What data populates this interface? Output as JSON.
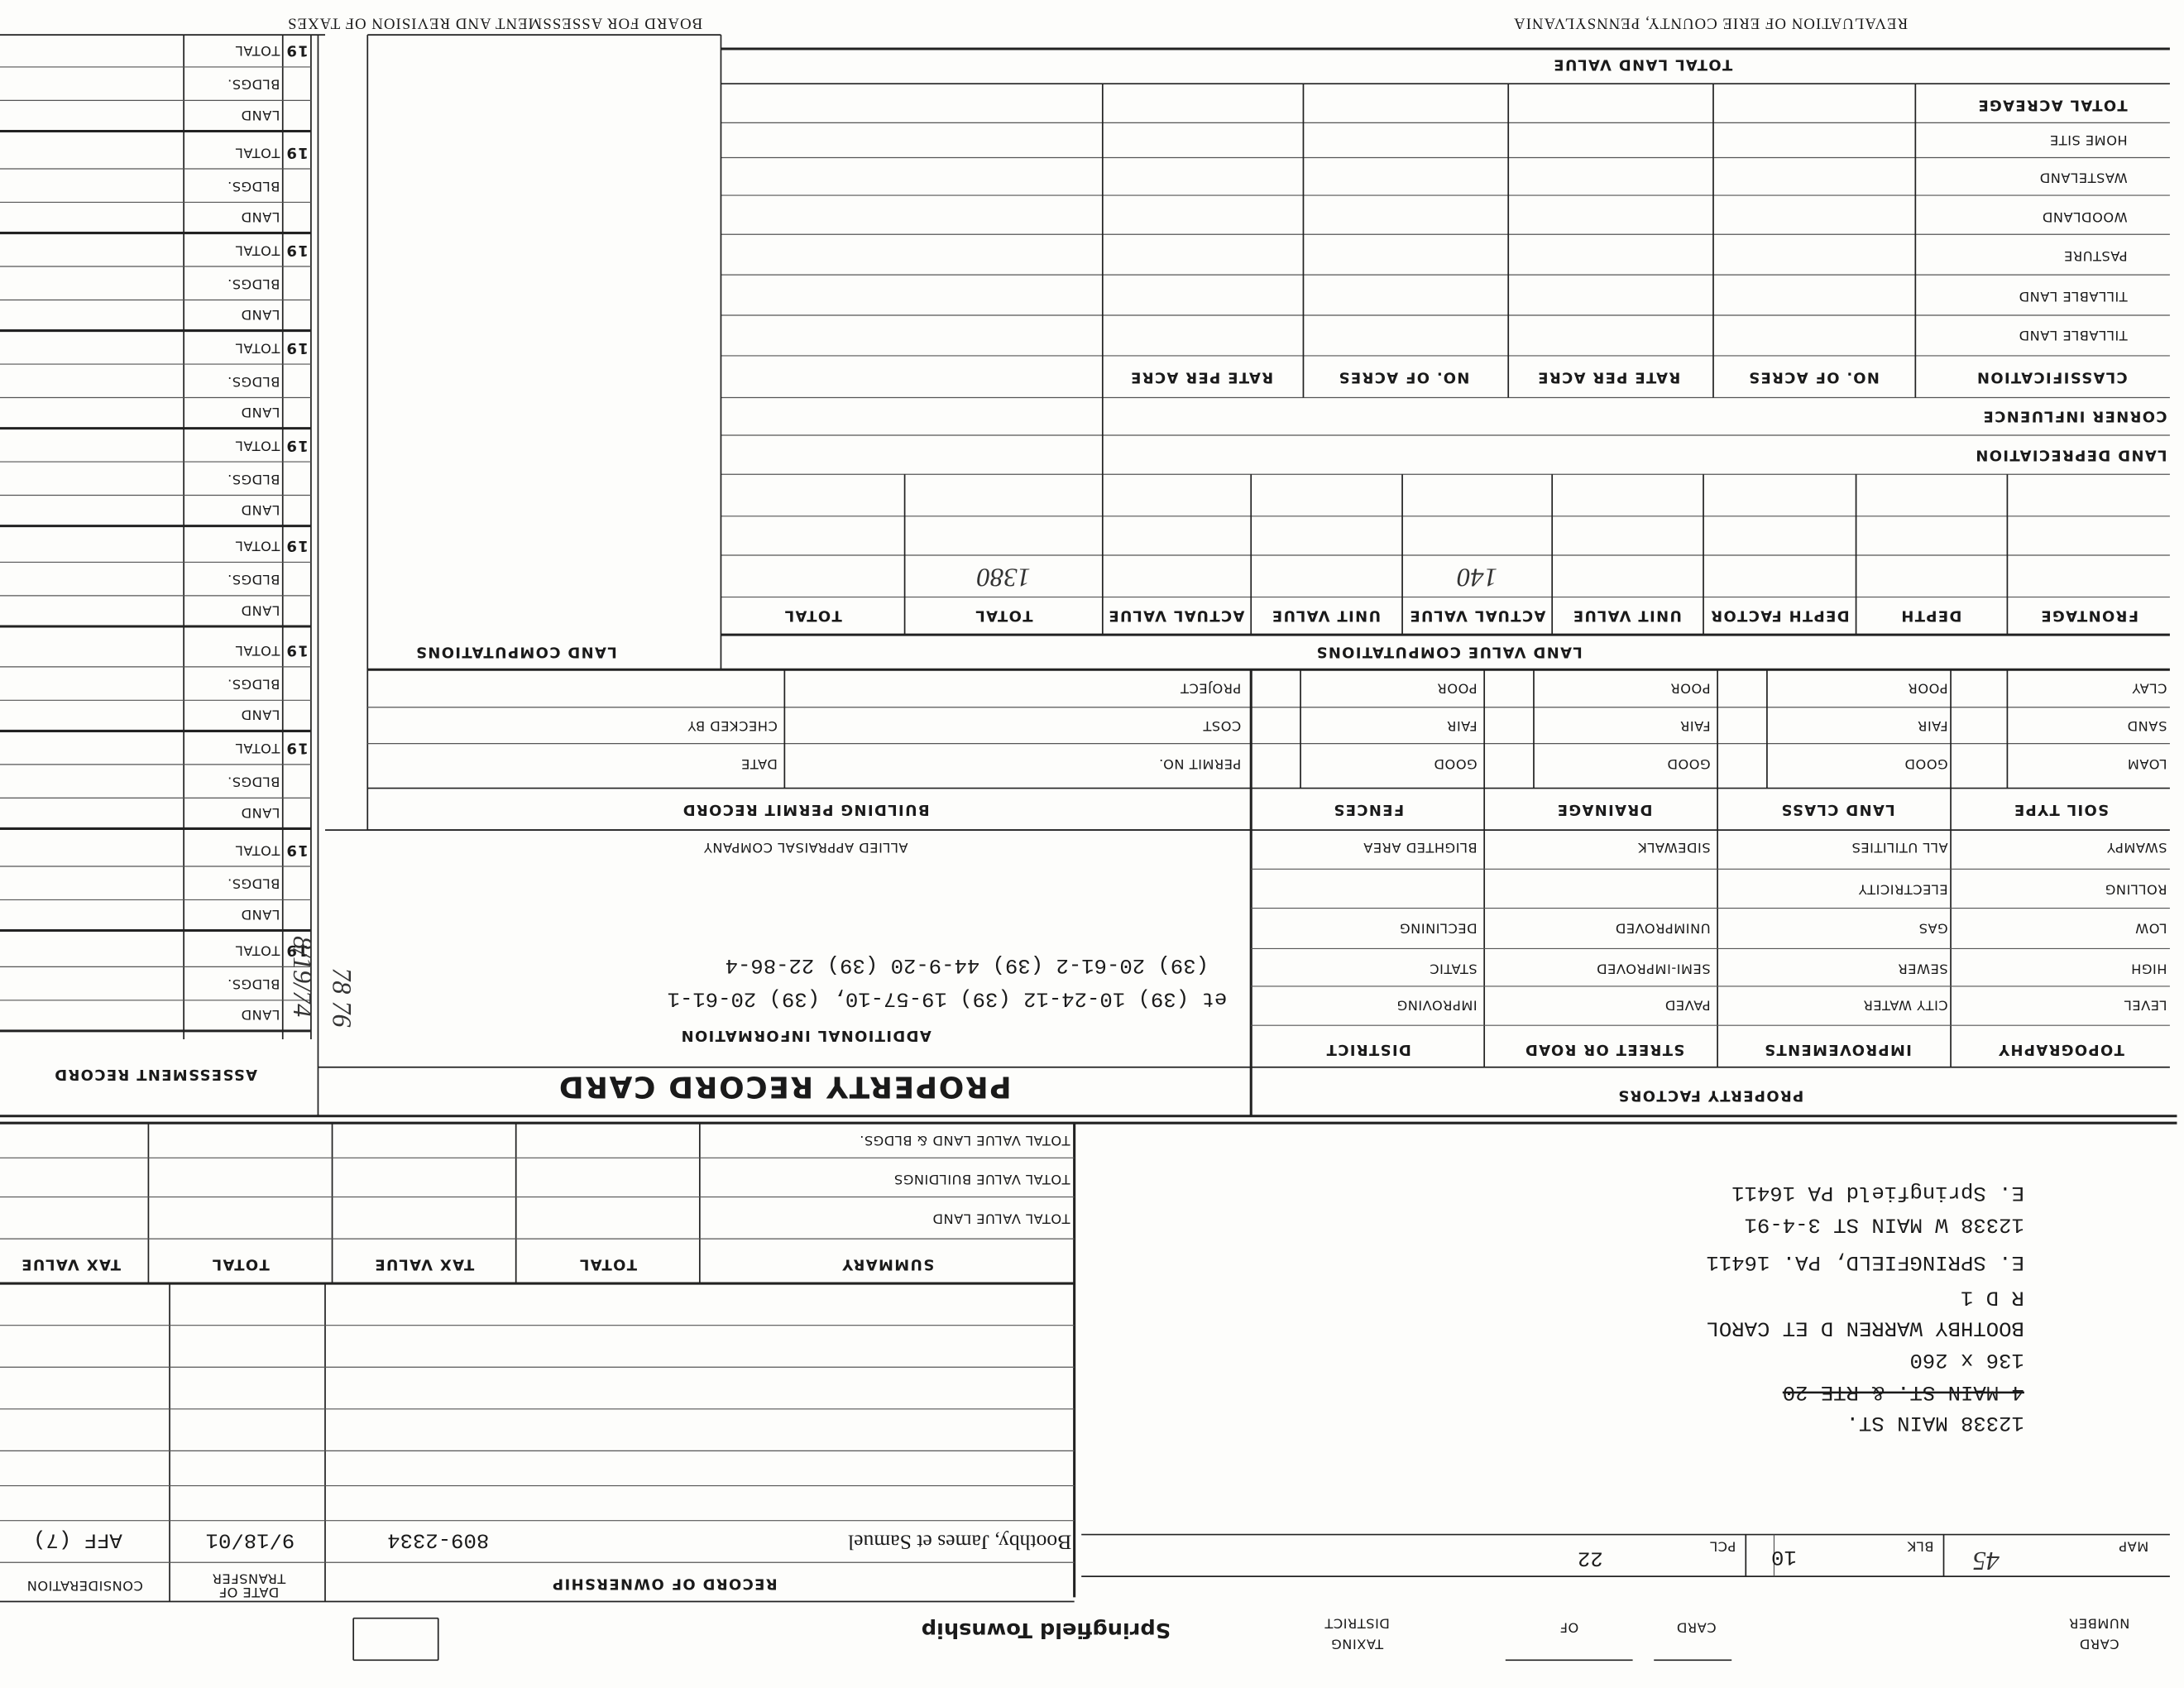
{
  "header": {
    "left": "BOARD FOR ASSESSMENT AND REVISION OF TAXES",
    "right": "REVALUATION OF ERIE COUNTY, PENNSYLVANIA"
  },
  "card_header": {
    "card_number": [
      "CARD",
      "NUMBER"
    ],
    "card_of": [
      "CARD",
      "OF"
    ],
    "taxing_district": [
      "TAXING",
      "DISTRICT"
    ],
    "township": "Springfield Township"
  },
  "parcel": {
    "map_label": "MAP",
    "map": "45",
    "blk_label": "BLK",
    "blk": "10",
    "pcl_label": "PCL",
    "pcl": "22"
  },
  "address_lines": [
    "12338 MAIN ST.",
    "4 MAIN ST. & RTE 20",
    "136 x 260",
    "BOOTHBY WARREN D ET CAROL",
    "R D 1",
    "E. SPRINGFIELD, PA. 16411",
    "12338 W MAIN ST 3-4-91",
    "E. Springfield PA 16411"
  ],
  "ownership": {
    "title": "RECORD OF OWNERSHIP",
    "date_header": [
      "DATE OF",
      "TRANSFER"
    ],
    "consideration_header": "CONSIDERATION",
    "rows": [
      [
        "Boothby, James et Samuel",
        "809-2334",
        "9/18/01",
        "AFF (7)"
      ]
    ]
  },
  "summary": {
    "headers": [
      "SUMMARY",
      "TOTAL",
      "TAX VALUE",
      "TOTAL",
      "TAX VALUE"
    ],
    "rows": [
      "TOTAL VALUE LAND",
      "TOTAL VALUE BUILDINGS",
      "TOTAL VALUE LAND & BLDGS."
    ]
  },
  "property_record_card": {
    "title": "PROPERTY RECORD CARD",
    "additional_information_title": "ADDITIONAL INFORMATION",
    "additional_information": [
      "et (39) 10-24-12 (39) 19-57-10, (39) 20-61-1",
      "(39) 20-61-2 (39) 44-9-20 (39) 22-86-4"
    ],
    "appraiser": "ALLIED APPRAISAL COMPANY"
  },
  "building_permit": {
    "title": "BUILDING PERMIT RECORD",
    "labels": [
      "PERMIT NO.",
      "COST",
      "PROJECT"
    ],
    "right_labels": [
      "DATE",
      "CHECKED BY"
    ]
  },
  "property_factors": {
    "title": "PROPERTY FACTORS",
    "columns": [
      {
        "header": "TOPOGRAPHY",
        "items": [
          "LEVEL",
          "HIGH",
          "LOW",
          "ROLLING",
          "SWAMPY"
        ]
      },
      {
        "header": "IMPROVEMENTS",
        "items": [
          "CITY WATER",
          "SEWER",
          "GAS",
          "ELECTRICITY",
          "ALL UTILITIES"
        ]
      },
      {
        "header": "STREET OR ROAD",
        "items": [
          "PAVED",
          "SEMI-IMPROVED",
          "UNIMPROVED",
          "SIDEWALK"
        ]
      },
      {
        "header": "DISTRICT",
        "items": [
          "IMPROVING",
          "STATIC",
          "DECLINING",
          "BLIGHTED AREA"
        ]
      }
    ]
  },
  "soil": {
    "columns": [
      {
        "header": "SOIL TYPE",
        "items": [
          "LOAM",
          "SAND",
          "CLAY"
        ]
      },
      {
        "header": "LAND CLASS",
        "items": [
          "GOOD",
          "FAIR",
          "POOR"
        ]
      },
      {
        "header": "DRAINAGE",
        "items": [
          "GOOD",
          "FAIR",
          "POOR"
        ]
      },
      {
        "header": "FENCES",
        "items": [
          "GOOD",
          "FAIR",
          "POOR"
        ]
      }
    ]
  },
  "land_value_computations": {
    "title": "LAND VALUE COMPUTATIONS",
    "headers": [
      "FRONTAGE",
      "DEPTH",
      "DEPTH FACTOR",
      "UNIT VALUE",
      "ACTUAL VALUE",
      "UNIT VALUE",
      "ACTUAL VALUE",
      "TOTAL",
      "TOTAL"
    ],
    "handwritten": {
      "actual_value": "140",
      "total": "1380"
    }
  },
  "land": {
    "total_land_value": "TOTAL LAND VALUE",
    "rows": [
      "TOTAL ACREAGE",
      "HOME SITE",
      "WASTELAND",
      "WOODLAND",
      "PASTURE",
      "TILLABLE LAND",
      "TILLABLE LAND"
    ],
    "classification_headers": [
      "CLASSIFICATION",
      "NO. OF ACRES",
      "RATE PER ACRE",
      "NO. OF ACRES",
      "RATE PER ACRE"
    ],
    "corner_influence": "CORNER INFLUENCE",
    "land_depreciation": "LAND DEPRECIATION"
  },
  "land_computations": "LAND COMPUTATIONS",
  "assessment_record": {
    "title": "ASSESSMENT RECORD",
    "notes": [
      "8/19/74",
      "78 76"
    ],
    "years": [
      {
        "year": "19",
        "labels": [
          "LAND",
          "BLDGS.",
          "TOTAL"
        ]
      },
      {
        "year": "19",
        "labels": [
          "LAND",
          "BLDGS.",
          "TOTAL"
        ]
      },
      {
        "year": "19",
        "labels": [
          "LAND",
          "BLDGS.",
          "TOTAL"
        ]
      },
      {
        "year": "19",
        "labels": [
          "LAND",
          "BLDGS.",
          "TOTAL"
        ]
      },
      {
        "year": "19",
        "labels": [
          "LAND",
          "BLDGS.",
          "TOTAL"
        ]
      },
      {
        "year": "19",
        "labels": [
          "LAND",
          "BLDGS.",
          "TOTAL"
        ]
      },
      {
        "year": "19",
        "labels": [
          "LAND",
          "BLDGS.",
          "TOTAL"
        ]
      },
      {
        "year": "19",
        "labels": [
          "LAND",
          "BLDGS.",
          "TOTAL"
        ]
      },
      {
        "year": "19",
        "labels": [
          "LAND",
          "BLDGS.",
          "TOTAL"
        ]
      },
      {
        "year": "19",
        "labels": [
          "LAND",
          "BLDGS.",
          "TOTAL"
        ]
      }
    ]
  }
}
